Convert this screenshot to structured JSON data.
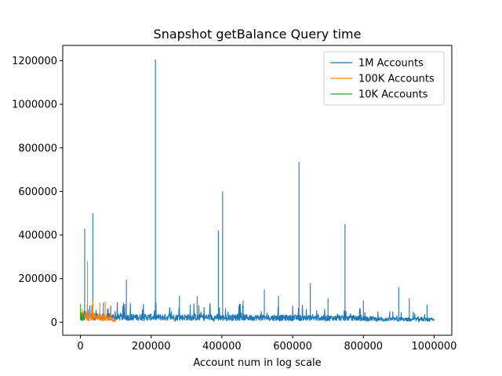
{
  "chart_data": {
    "type": "line",
    "title": "Snapshot getBalance Query time",
    "xlabel": "Account num in log scale",
    "ylabel": "",
    "xlim": [
      -50000,
      1050000
    ],
    "ylim": [
      -60000,
      1270000
    ],
    "xticks": [
      0,
      200000,
      400000,
      600000,
      800000,
      1000000
    ],
    "xtick_labels": [
      "0",
      "200000",
      "400000",
      "600000",
      "800000",
      "1000000"
    ],
    "yticks": [
      0,
      200000,
      400000,
      600000,
      800000,
      1000000,
      1200000
    ],
    "ytick_labels": [
      "0",
      "200000",
      "400000",
      "600000",
      "800000",
      "1000000",
      "1200000"
    ],
    "grid": false,
    "legend_position": "top-right",
    "series": [
      {
        "name": "1M Accounts",
        "color": "#1f77b4",
        "x_range": [
          0,
          1000000
        ],
        "baseline": [
          [
            0,
            30000
          ],
          [
            100000,
            25000
          ],
          [
            300000,
            25000
          ],
          [
            600000,
            22000
          ],
          [
            800000,
            20000
          ],
          [
            850000,
            15000
          ],
          [
            1000000,
            12000
          ]
        ],
        "spikes": [
          [
            12000,
            430000
          ],
          [
            35000,
            500000
          ],
          [
            65000,
            90000
          ],
          [
            130000,
            195000
          ],
          [
            212000,
            1205000
          ],
          [
            280000,
            120000
          ],
          [
            330000,
            120000
          ],
          [
            390000,
            420000
          ],
          [
            402000,
            600000
          ],
          [
            460000,
            100000
          ],
          [
            520000,
            150000
          ],
          [
            560000,
            120000
          ],
          [
            618000,
            735000
          ],
          [
            650000,
            180000
          ],
          [
            700000,
            110000
          ],
          [
            748000,
            450000
          ],
          [
            800000,
            100000
          ],
          [
            900000,
            160000
          ],
          [
            930000,
            110000
          ],
          [
            980000,
            80000
          ]
        ]
      },
      {
        "name": "100K Accounts",
        "color": "#ff7f0e",
        "x_range": [
          0,
          100000
        ],
        "baseline": [
          [
            0,
            30000
          ],
          [
            50000,
            30000
          ],
          [
            100000,
            10000
          ]
        ],
        "spikes": [
          [
            5000,
            60000
          ],
          [
            20000,
            280000
          ],
          [
            35000,
            100000
          ],
          [
            55000,
            90000
          ],
          [
            70000,
            95000
          ]
        ]
      },
      {
        "name": "10K Accounts",
        "color": "#2ca02c",
        "x_range": [
          0,
          10000
        ],
        "baseline": [
          [
            0,
            25000
          ],
          [
            10000,
            15000
          ]
        ],
        "spikes": [
          [
            2000,
            45000
          ],
          [
            6000,
            40000
          ]
        ]
      }
    ]
  }
}
